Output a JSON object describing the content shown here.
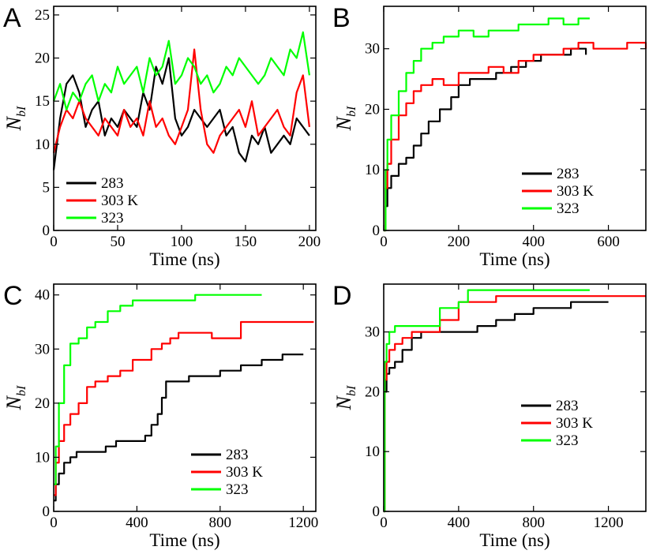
{
  "figure": {
    "description_id": "nbi-time-series-figure"
  },
  "colors": {
    "283": "#000000",
    "303": "#ff0000",
    "323": "#00ff00"
  },
  "chart_data": [
    {
      "panel": "A",
      "type": "line",
      "xlabel": "Time (ns)",
      "ylabel": "N",
      "ylabel_sub": "bI",
      "xlim": [
        0,
        205
      ],
      "ylim": [
        0,
        26
      ],
      "xticks": [
        0,
        50,
        100,
        150,
        200
      ],
      "yticks": [
        0,
        5,
        10,
        15,
        20,
        25
      ],
      "legend": {
        "position": "bottom-left",
        "labels": [
          "283",
          "303 K",
          "323"
        ]
      },
      "series": [
        {
          "name": "283",
          "color": "#000000",
          "x": [
            0,
            5,
            10,
            15,
            20,
            25,
            30,
            35,
            40,
            45,
            50,
            55,
            60,
            65,
            70,
            75,
            80,
            85,
            90,
            95,
            100,
            105,
            110,
            115,
            120,
            125,
            130,
            135,
            140,
            145,
            150,
            155,
            160,
            165,
            170,
            175,
            180,
            185,
            190,
            195,
            200
          ],
          "y": [
            7,
            13,
            17,
            18,
            16,
            12,
            14,
            15,
            11,
            13,
            12,
            14,
            13,
            12,
            16,
            14,
            19,
            17,
            20,
            13,
            11,
            12,
            14,
            13,
            12,
            13,
            14,
            11,
            12,
            9,
            8,
            11,
            10,
            12,
            9,
            10,
            11,
            10,
            13,
            12,
            11
          ]
        },
        {
          "name": "303 K",
          "color": "#ff0000",
          "x": [
            0,
            5,
            10,
            15,
            20,
            25,
            30,
            35,
            40,
            45,
            50,
            55,
            60,
            65,
            70,
            75,
            80,
            85,
            90,
            95,
            100,
            105,
            110,
            115,
            120,
            125,
            130,
            135,
            140,
            145,
            150,
            155,
            160,
            165,
            170,
            175,
            180,
            185,
            190,
            195,
            200
          ],
          "y": [
            9,
            12,
            14,
            13,
            15,
            13,
            12,
            11,
            13,
            12,
            11,
            14,
            12,
            13,
            11,
            15,
            12,
            13,
            11,
            10,
            12,
            14,
            21,
            14,
            10,
            9,
            11,
            12,
            13,
            14,
            12,
            15,
            11,
            12,
            13,
            14,
            12,
            11,
            16,
            18,
            12
          ]
        },
        {
          "name": "323",
          "color": "#00ff00",
          "x": [
            0,
            5,
            10,
            15,
            20,
            25,
            30,
            35,
            40,
            45,
            50,
            55,
            60,
            65,
            70,
            75,
            80,
            85,
            90,
            95,
            100,
            105,
            110,
            115,
            120,
            125,
            130,
            135,
            140,
            145,
            150,
            155,
            160,
            165,
            170,
            175,
            180,
            185,
            190,
            195,
            200
          ],
          "y": [
            15,
            17,
            14,
            16,
            15,
            17,
            18,
            15,
            17,
            16,
            19,
            17,
            18,
            19,
            16,
            20,
            18,
            19,
            22,
            17,
            18,
            20,
            19,
            17,
            18,
            16,
            17,
            19,
            18,
            20,
            19,
            18,
            17,
            18,
            20,
            19,
            18,
            21,
            20,
            23,
            18
          ]
        }
      ]
    },
    {
      "panel": "B",
      "type": "line",
      "xlabel": "Time (ns)",
      "ylabel": "N",
      "ylabel_sub": "bI",
      "xlim": [
        0,
        700
      ],
      "ylim": [
        0,
        37
      ],
      "xticks": [
        0,
        200,
        400,
        600
      ],
      "yticks": [
        0,
        10,
        20,
        30
      ],
      "legend": {
        "position": "bottom-right",
        "labels": [
          "283",
          "303 K",
          "323"
        ]
      },
      "series": [
        {
          "name": "283",
          "color": "#000000",
          "x": [
            0,
            5,
            10,
            20,
            40,
            60,
            80,
            100,
            120,
            150,
            180,
            200,
            230,
            260,
            300,
            340,
            380,
            420,
            460,
            500,
            540
          ],
          "y": [
            0,
            4,
            7,
            9,
            11,
            12,
            14,
            16,
            18,
            20,
            22,
            24,
            25,
            25,
            26,
            27,
            28,
            29,
            29,
            30,
            29
          ]
        },
        {
          "name": "303 K",
          "color": "#ff0000",
          "x": [
            0,
            5,
            10,
            20,
            40,
            60,
            80,
            100,
            130,
            160,
            200,
            240,
            280,
            320,
            360,
            400,
            440,
            480,
            520,
            560,
            600,
            650,
            700
          ],
          "y": [
            0,
            7,
            11,
            15,
            19,
            21,
            23,
            24,
            25,
            24,
            26,
            26,
            27,
            26,
            28,
            29,
            29,
            30,
            31,
            30,
            30,
            31,
            30
          ]
        },
        {
          "name": "323",
          "color": "#00ff00",
          "x": [
            0,
            5,
            10,
            20,
            40,
            60,
            80,
            100,
            130,
            160,
            200,
            240,
            280,
            320,
            360,
            400,
            440,
            480,
            520,
            550
          ],
          "y": [
            0,
            10,
            15,
            19,
            23,
            26,
            28,
            30,
            31,
            32,
            33,
            32,
            33,
            33,
            34,
            34,
            35,
            34,
            35,
            35
          ]
        }
      ]
    },
    {
      "panel": "C",
      "type": "line",
      "xlabel": "Time (ns)",
      "ylabel": "N",
      "ylabel_sub": "bI",
      "xlim": [
        0,
        1260
      ],
      "ylim": [
        0,
        42
      ],
      "xticks": [
        0,
        400,
        800,
        1200
      ],
      "yticks": [
        0,
        10,
        20,
        30,
        40
      ],
      "legend": {
        "position": "bottom-right",
        "labels": [
          "283",
          "303 K",
          "323"
        ]
      },
      "series": [
        {
          "name": "283",
          "color": "#000000",
          "x": [
            0,
            10,
            25,
            50,
            80,
            110,
            200,
            250,
            300,
            380,
            420,
            440,
            470,
            500,
            520,
            540,
            560,
            600,
            650,
            700,
            800,
            900,
            1000,
            1100,
            1200
          ],
          "y": [
            2,
            5,
            7,
            9,
            10,
            11,
            11,
            12,
            13,
            13,
            13,
            14,
            16,
            18,
            21,
            24,
            24,
            24,
            25,
            25,
            26,
            27,
            28,
            29,
            29
          ]
        },
        {
          "name": "303 K",
          "color": "#ff0000",
          "x": [
            0,
            10,
            25,
            50,
            80,
            120,
            160,
            200,
            260,
            320,
            380,
            420,
            470,
            520,
            560,
            600,
            650,
            700,
            760,
            800,
            860,
            900,
            950,
            1000,
            1100,
            1250
          ],
          "y": [
            3,
            9,
            13,
            16,
            18,
            20,
            23,
            24,
            25,
            26,
            28,
            28,
            30,
            31,
            32,
            33,
            33,
            33,
            32,
            32,
            32,
            35,
            35,
            35,
            35,
            35
          ]
        },
        {
          "name": "323",
          "color": "#00ff00",
          "x": [
            0,
            10,
            25,
            50,
            80,
            120,
            160,
            200,
            260,
            320,
            380,
            450,
            520,
            600,
            680,
            760,
            850,
            1000
          ],
          "y": [
            5,
            12,
            20,
            27,
            31,
            32,
            34,
            35,
            37,
            38,
            39,
            39,
            39,
            39,
            40,
            40,
            40,
            40
          ]
        }
      ]
    },
    {
      "panel": "D",
      "type": "line",
      "xlabel": "Time (ns)",
      "ylabel": "N",
      "ylabel_sub": "bI",
      "xlim": [
        0,
        1400
      ],
      "ylim": [
        0,
        38
      ],
      "xticks": [
        0,
        400,
        800,
        1200
      ],
      "yticks": [
        0,
        10,
        20,
        30
      ],
      "legend": {
        "position": "center-right",
        "labels": [
          "283",
          "303 K",
          "323"
        ]
      },
      "series": [
        {
          "name": "283",
          "color": "#000000",
          "x": [
            0,
            5,
            15,
            30,
            60,
            100,
            150,
            200,
            250,
            300,
            400,
            500,
            600,
            700,
            800,
            900,
            1000,
            1100,
            1200
          ],
          "y": [
            0,
            20,
            23,
            24,
            25,
            27,
            29,
            30,
            30,
            30,
            30,
            31,
            32,
            33,
            34,
            34,
            35,
            35,
            35
          ]
        },
        {
          "name": "303 K",
          "color": "#ff0000",
          "x": [
            0,
            5,
            15,
            30,
            60,
            100,
            150,
            200,
            300,
            400,
            500,
            600,
            800,
            1000,
            1200,
            1400
          ],
          "y": [
            0,
            22,
            25,
            27,
            28,
            29,
            30,
            30,
            32,
            35,
            35,
            36,
            36,
            36,
            36,
            36
          ]
        },
        {
          "name": "323",
          "color": "#00ff00",
          "x": [
            0,
            5,
            15,
            30,
            60,
            100,
            200,
            300,
            400,
            450,
            500,
            600,
            800,
            1100
          ],
          "y": [
            0,
            25,
            28,
            30,
            31,
            31,
            31,
            34,
            35,
            37,
            37,
            37,
            37,
            37
          ]
        }
      ]
    }
  ]
}
